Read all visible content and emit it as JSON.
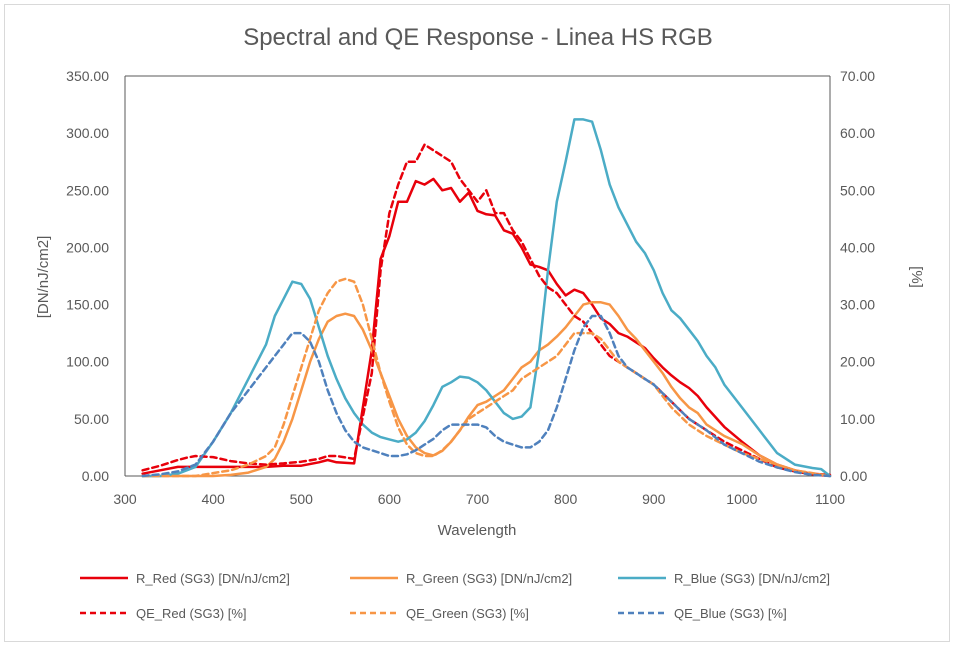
{
  "chart_data": {
    "type": "line",
    "title": "Spectral and QE Response - Linea HS RGB",
    "xlabel": "Wavelength",
    "ylabel_left": "[DN/nJ/cm2]",
    "ylabel_right": "[%]",
    "xlim": [
      300,
      1100
    ],
    "ylim_left": [
      0,
      350
    ],
    "ylim_right": [
      0,
      70
    ],
    "x_ticks": [
      "300",
      "400",
      "500",
      "600",
      "700",
      "800",
      "900",
      "1000",
      "1100"
    ],
    "y_left_ticks": [
      "0.00",
      "50.00",
      "100.00",
      "150.00",
      "200.00",
      "250.00",
      "300.00",
      "350.00"
    ],
    "y_right_ticks": [
      "0.00",
      "10.00",
      "20.00",
      "30.00",
      "40.00",
      "50.00",
      "60.00",
      "70.00"
    ],
    "grid": false,
    "legend_position": "bottom",
    "series": [
      {
        "name": "R_Red (SG3) [DN/nJ/cm2]",
        "axis": "left",
        "color": "#e8000b",
        "dashed": false,
        "x": [
          320,
          340,
          360,
          380,
          400,
          420,
          440,
          460,
          480,
          500,
          520,
          530,
          540,
          560,
          580,
          590,
          600,
          610,
          620,
          630,
          640,
          650,
          660,
          670,
          680,
          690,
          700,
          710,
          720,
          730,
          740,
          750,
          760,
          770,
          780,
          790,
          800,
          810,
          820,
          830,
          840,
          850,
          860,
          870,
          880,
          890,
          900,
          910,
          920,
          930,
          940,
          950,
          960,
          980,
          1000,
          1020,
          1040,
          1060,
          1080,
          1100
        ],
        "y": [
          2,
          5,
          8,
          8,
          8,
          8,
          8,
          8,
          9,
          9,
          12,
          14,
          12,
          11,
          110,
          190,
          210,
          240,
          240,
          258,
          255,
          260,
          250,
          252,
          240,
          248,
          232,
          229,
          228,
          215,
          212,
          200,
          185,
          183,
          180,
          168,
          158,
          163,
          160,
          150,
          138,
          133,
          125,
          122,
          117,
          112,
          103,
          95,
          88,
          82,
          77,
          70,
          60,
          43,
          30,
          18,
          10,
          5,
          2,
          1
        ]
      },
      {
        "name": "R_Green (SG3) [DN/nJ/cm2]",
        "axis": "left",
        "color": "#f79646",
        "dashed": false,
        "x": [
          320,
          340,
          360,
          380,
          400,
          420,
          440,
          460,
          470,
          480,
          490,
          500,
          510,
          520,
          530,
          540,
          550,
          560,
          570,
          580,
          590,
          600,
          610,
          620,
          630,
          640,
          650,
          660,
          670,
          680,
          690,
          700,
          710,
          720,
          730,
          740,
          750,
          760,
          770,
          780,
          790,
          800,
          810,
          820,
          830,
          840,
          850,
          860,
          870,
          880,
          890,
          900,
          910,
          920,
          930,
          940,
          950,
          960,
          980,
          1000,
          1020,
          1040,
          1060,
          1080,
          1100
        ],
        "y": [
          0,
          0,
          0,
          0,
          0,
          1,
          3,
          8,
          15,
          30,
          50,
          75,
          100,
          120,
          135,
          140,
          142,
          140,
          128,
          110,
          90,
          70,
          50,
          35,
          25,
          20,
          18,
          22,
          30,
          40,
          52,
          62,
          65,
          70,
          75,
          85,
          95,
          100,
          110,
          115,
          122,
          130,
          140,
          150,
          152,
          152,
          150,
          140,
          128,
          120,
          110,
          100,
          90,
          78,
          68,
          60,
          55,
          45,
          35,
          28,
          18,
          10,
          5,
          2,
          0
        ]
      },
      {
        "name": "R_Blue (SG3) [DN/nJ/cm2]",
        "axis": "left",
        "color": "#4bacc6",
        "dashed": false,
        "x": [
          320,
          340,
          360,
          380,
          400,
          420,
          440,
          460,
          470,
          480,
          490,
          500,
          510,
          520,
          530,
          540,
          550,
          560,
          570,
          580,
          590,
          600,
          610,
          620,
          630,
          640,
          650,
          660,
          670,
          680,
          690,
          700,
          710,
          720,
          730,
          740,
          750,
          760,
          770,
          780,
          790,
          800,
          810,
          820,
          830,
          840,
          850,
          860,
          870,
          880,
          890,
          900,
          910,
          920,
          930,
          940,
          950,
          960,
          970,
          980,
          990,
          1000,
          1020,
          1040,
          1060,
          1080,
          1090,
          1100
        ],
        "y": [
          0,
          0,
          2,
          8,
          30,
          55,
          85,
          115,
          140,
          155,
          170,
          168,
          155,
          130,
          105,
          85,
          68,
          55,
          45,
          38,
          34,
          32,
          30,
          32,
          38,
          48,
          62,
          78,
          82,
          87,
          86,
          82,
          75,
          65,
          55,
          50,
          52,
          60,
          110,
          180,
          240,
          275,
          312,
          312,
          310,
          285,
          255,
          235,
          220,
          205,
          195,
          180,
          160,
          145,
          138,
          128,
          118,
          105,
          95,
          80,
          70,
          60,
          40,
          20,
          10,
          7,
          6,
          0
        ]
      },
      {
        "name": "QE_Red (SG3) [%]",
        "axis": "right",
        "color": "#e8000b",
        "dashed": true,
        "x": [
          320,
          340,
          360,
          370,
          380,
          400,
          420,
          440,
          460,
          480,
          500,
          520,
          530,
          540,
          560,
          580,
          590,
          600,
          610,
          620,
          630,
          640,
          650,
          660,
          670,
          680,
          690,
          700,
          710,
          720,
          730,
          740,
          750,
          760,
          770,
          780,
          790,
          800,
          810,
          820,
          830,
          840,
          850,
          860,
          870,
          880,
          890,
          900,
          920,
          940,
          960,
          980,
          1000,
          1020,
          1040,
          1060,
          1080,
          1100
        ],
        "y": [
          1,
          1.8,
          2.8,
          3.2,
          3.5,
          3.3,
          2.6,
          2.2,
          2,
          2.2,
          2.5,
          3,
          3.5,
          3.5,
          3,
          18,
          36,
          46,
          51,
          55,
          55,
          58,
          57,
          56,
          55,
          52,
          50,
          48,
          50,
          46,
          46,
          43,
          41,
          38,
          35,
          33,
          32,
          30,
          28,
          27,
          25,
          23,
          21,
          20,
          19,
          18,
          17,
          16,
          13,
          10,
          8,
          6,
          4.5,
          3,
          1.5,
          0.8,
          0.3,
          0
        ]
      },
      {
        "name": "QE_Green (SG3) [%]",
        "axis": "right",
        "color": "#f79646",
        "dashed": true,
        "x": [
          320,
          340,
          360,
          380,
          400,
          420,
          440,
          460,
          470,
          480,
          490,
          500,
          510,
          520,
          530,
          540,
          550,
          560,
          570,
          580,
          590,
          600,
          610,
          620,
          630,
          640,
          650,
          660,
          670,
          680,
          690,
          700,
          710,
          720,
          730,
          740,
          750,
          760,
          770,
          780,
          790,
          800,
          810,
          820,
          830,
          840,
          850,
          860,
          870,
          880,
          890,
          900,
          920,
          940,
          960,
          980,
          1000,
          1020,
          1040,
          1060,
          1080,
          1100
        ],
        "y": [
          0,
          0,
          0,
          0,
          0.5,
          1,
          2,
          3.5,
          5,
          9,
          14,
          19,
          24,
          29,
          32,
          34,
          34.5,
          34,
          30,
          24,
          18,
          13,
          8.5,
          5.5,
          4,
          3.5,
          3.5,
          4.5,
          6,
          8,
          10,
          11,
          12,
          13,
          14,
          15,
          17,
          18,
          19,
          20,
          21,
          23,
          25,
          25,
          25,
          24,
          22,
          20,
          19,
          18,
          17,
          16,
          12,
          9,
          7,
          5.5,
          4,
          3,
          2,
          1,
          0.5,
          0
        ]
      },
      {
        "name": "QE_Blue (SG3) [%]",
        "axis": "right",
        "color": "#4f81bd",
        "dashed": true,
        "x": [
          320,
          340,
          360,
          380,
          400,
          420,
          440,
          460,
          470,
          480,
          490,
          500,
          510,
          520,
          530,
          540,
          550,
          560,
          570,
          580,
          590,
          600,
          610,
          620,
          630,
          640,
          650,
          660,
          670,
          680,
          690,
          700,
          710,
          720,
          730,
          740,
          750,
          760,
          770,
          780,
          790,
          800,
          810,
          820,
          830,
          840,
          850,
          860,
          870,
          880,
          890,
          900,
          920,
          940,
          960,
          980,
          1000,
          1020,
          1040,
          1060,
          1080,
          1100
        ],
        "y": [
          0,
          0.3,
          0.8,
          2,
          6,
          11,
          15,
          19,
          21,
          23,
          25,
          25,
          23.5,
          20,
          15,
          11,
          8,
          6,
          5,
          4.5,
          4,
          3.5,
          3.5,
          3.8,
          4.5,
          5.5,
          6.5,
          8,
          9,
          9,
          9,
          9,
          8.5,
          7,
          6,
          5.5,
          5,
          5,
          6,
          8,
          12,
          17,
          22,
          26,
          28,
          28,
          25,
          21,
          19,
          18,
          17,
          16,
          13,
          10,
          8,
          5.5,
          4,
          2.5,
          1.5,
          0.7,
          0.2,
          0
        ]
      }
    ]
  }
}
